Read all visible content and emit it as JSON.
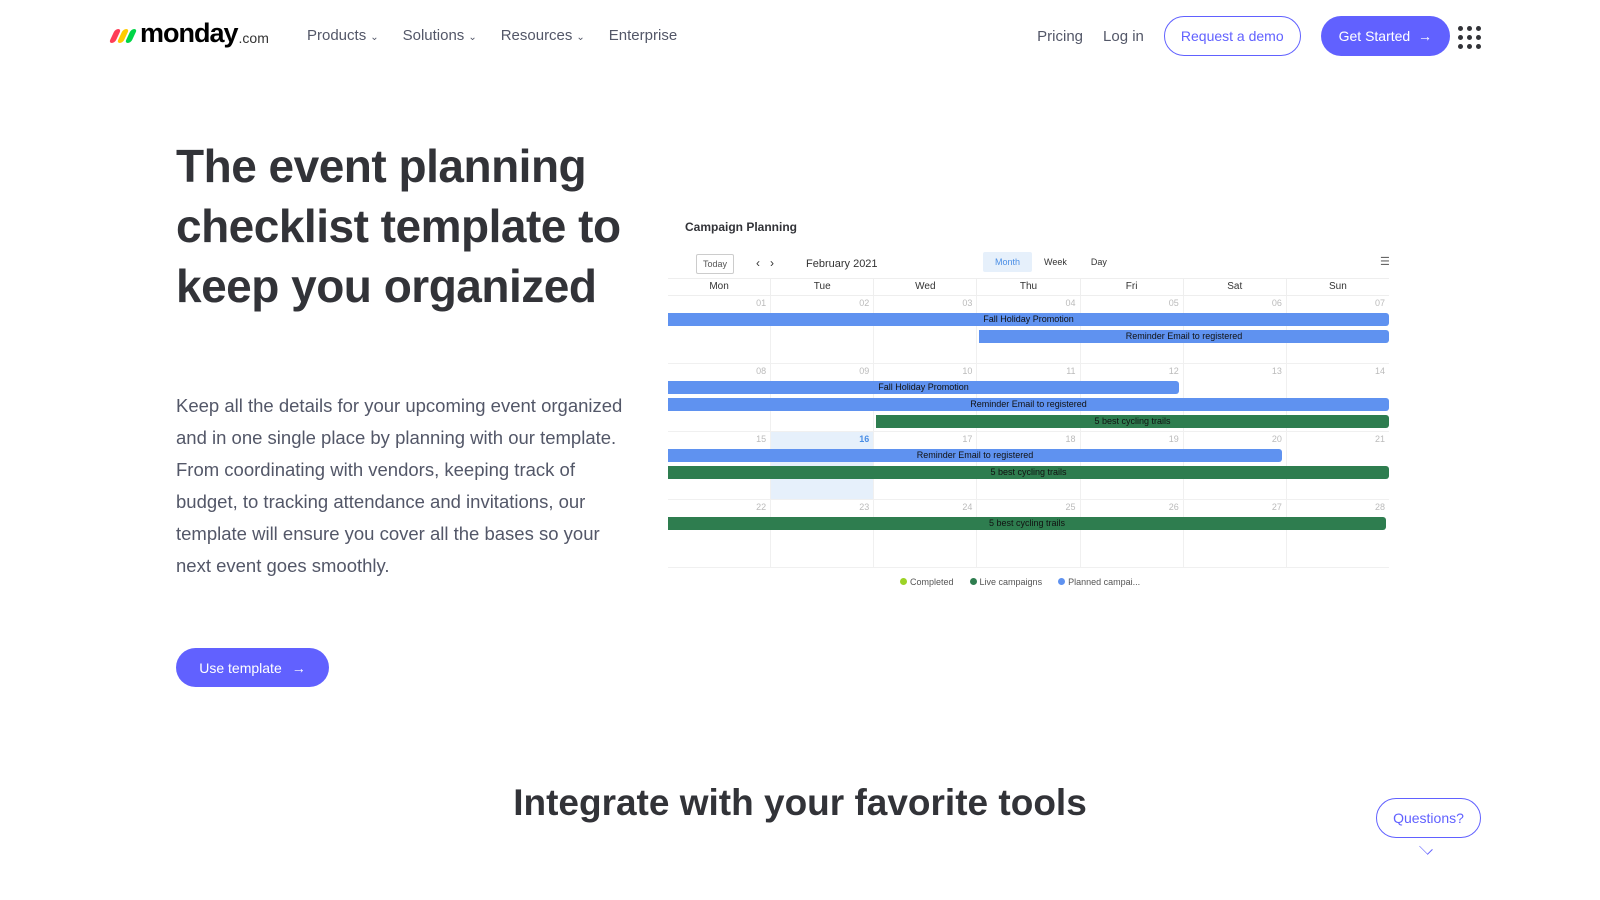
{
  "nav": {
    "logo_text": "monday",
    "logo_suffix": ".com",
    "logo_colors": [
      "#ff3d57",
      "#ffcb00",
      "#00d647"
    ],
    "links": [
      "Products",
      "Solutions",
      "Resources",
      "Enterprise"
    ],
    "pricing": "Pricing",
    "login": "Log in",
    "request_demo": "Request a demo",
    "get_started": "Get Started",
    "accent": "#6161ff"
  },
  "hero": {
    "title": "The event planning checklist template to keep you organized",
    "description": "Keep all the details for your upcoming event organized and in one single place by planning with our template. From coordinating with vendors, keeping track of budget, to tracking attendance and invitations, our template will ensure you cover all the bases so your next event goes smoothly.",
    "cta": "Use template"
  },
  "calendar": {
    "title": "Campaign Planning",
    "today": "Today",
    "month": "February 2021",
    "views": [
      "Month",
      "Week",
      "Day"
    ],
    "active_view": "Month",
    "weekdays": [
      "Mon",
      "Tue",
      "Wed",
      "Thu",
      "Fri",
      "Sat",
      "Sun"
    ],
    "weeks": [
      [
        "01",
        "02",
        "03",
        "04",
        "05",
        "06",
        "07"
      ],
      [
        "08",
        "09",
        "10",
        "11",
        "12",
        "13",
        "14"
      ],
      [
        "15",
        "16",
        "17",
        "18",
        "19",
        "20",
        "21"
      ],
      [
        "22",
        "23",
        "24",
        "25",
        "26",
        "27",
        "28"
      ]
    ],
    "today_date": "16",
    "events": [
      {
        "label": "Fall Holiday Promotion",
        "start": 1,
        "end": 7,
        "status": "planned"
      },
      {
        "label": "Reminder Email to registered",
        "start": 4,
        "end": 7,
        "status": "planned"
      },
      {
        "label": "Fall Holiday Promotion",
        "start": 8,
        "end": 12,
        "status": "planned"
      },
      {
        "label": "Reminder Email to registered",
        "start": 8,
        "end": 14,
        "status": "planned"
      },
      {
        "label": "5 best cycling trails",
        "start": 10,
        "end": 14,
        "status": "live"
      },
      {
        "label": "Reminder Email to registered",
        "start": 15,
        "end": 20,
        "status": "planned"
      },
      {
        "label": "5 best cycling trails",
        "start": 15,
        "end": 21,
        "status": "live"
      },
      {
        "label": "5 best cycling trails",
        "start": 22,
        "end": 28,
        "status": "live"
      }
    ],
    "legend": [
      {
        "label": "Completed",
        "color": "#9cd326"
      },
      {
        "label": "Live campaigns",
        "color": "#2e7d4f"
      },
      {
        "label": "Planned campai...",
        "color": "#5f92f0"
      }
    ]
  },
  "section2": {
    "title": "Integrate with your favorite tools"
  },
  "chat": {
    "label": "Questions?"
  }
}
